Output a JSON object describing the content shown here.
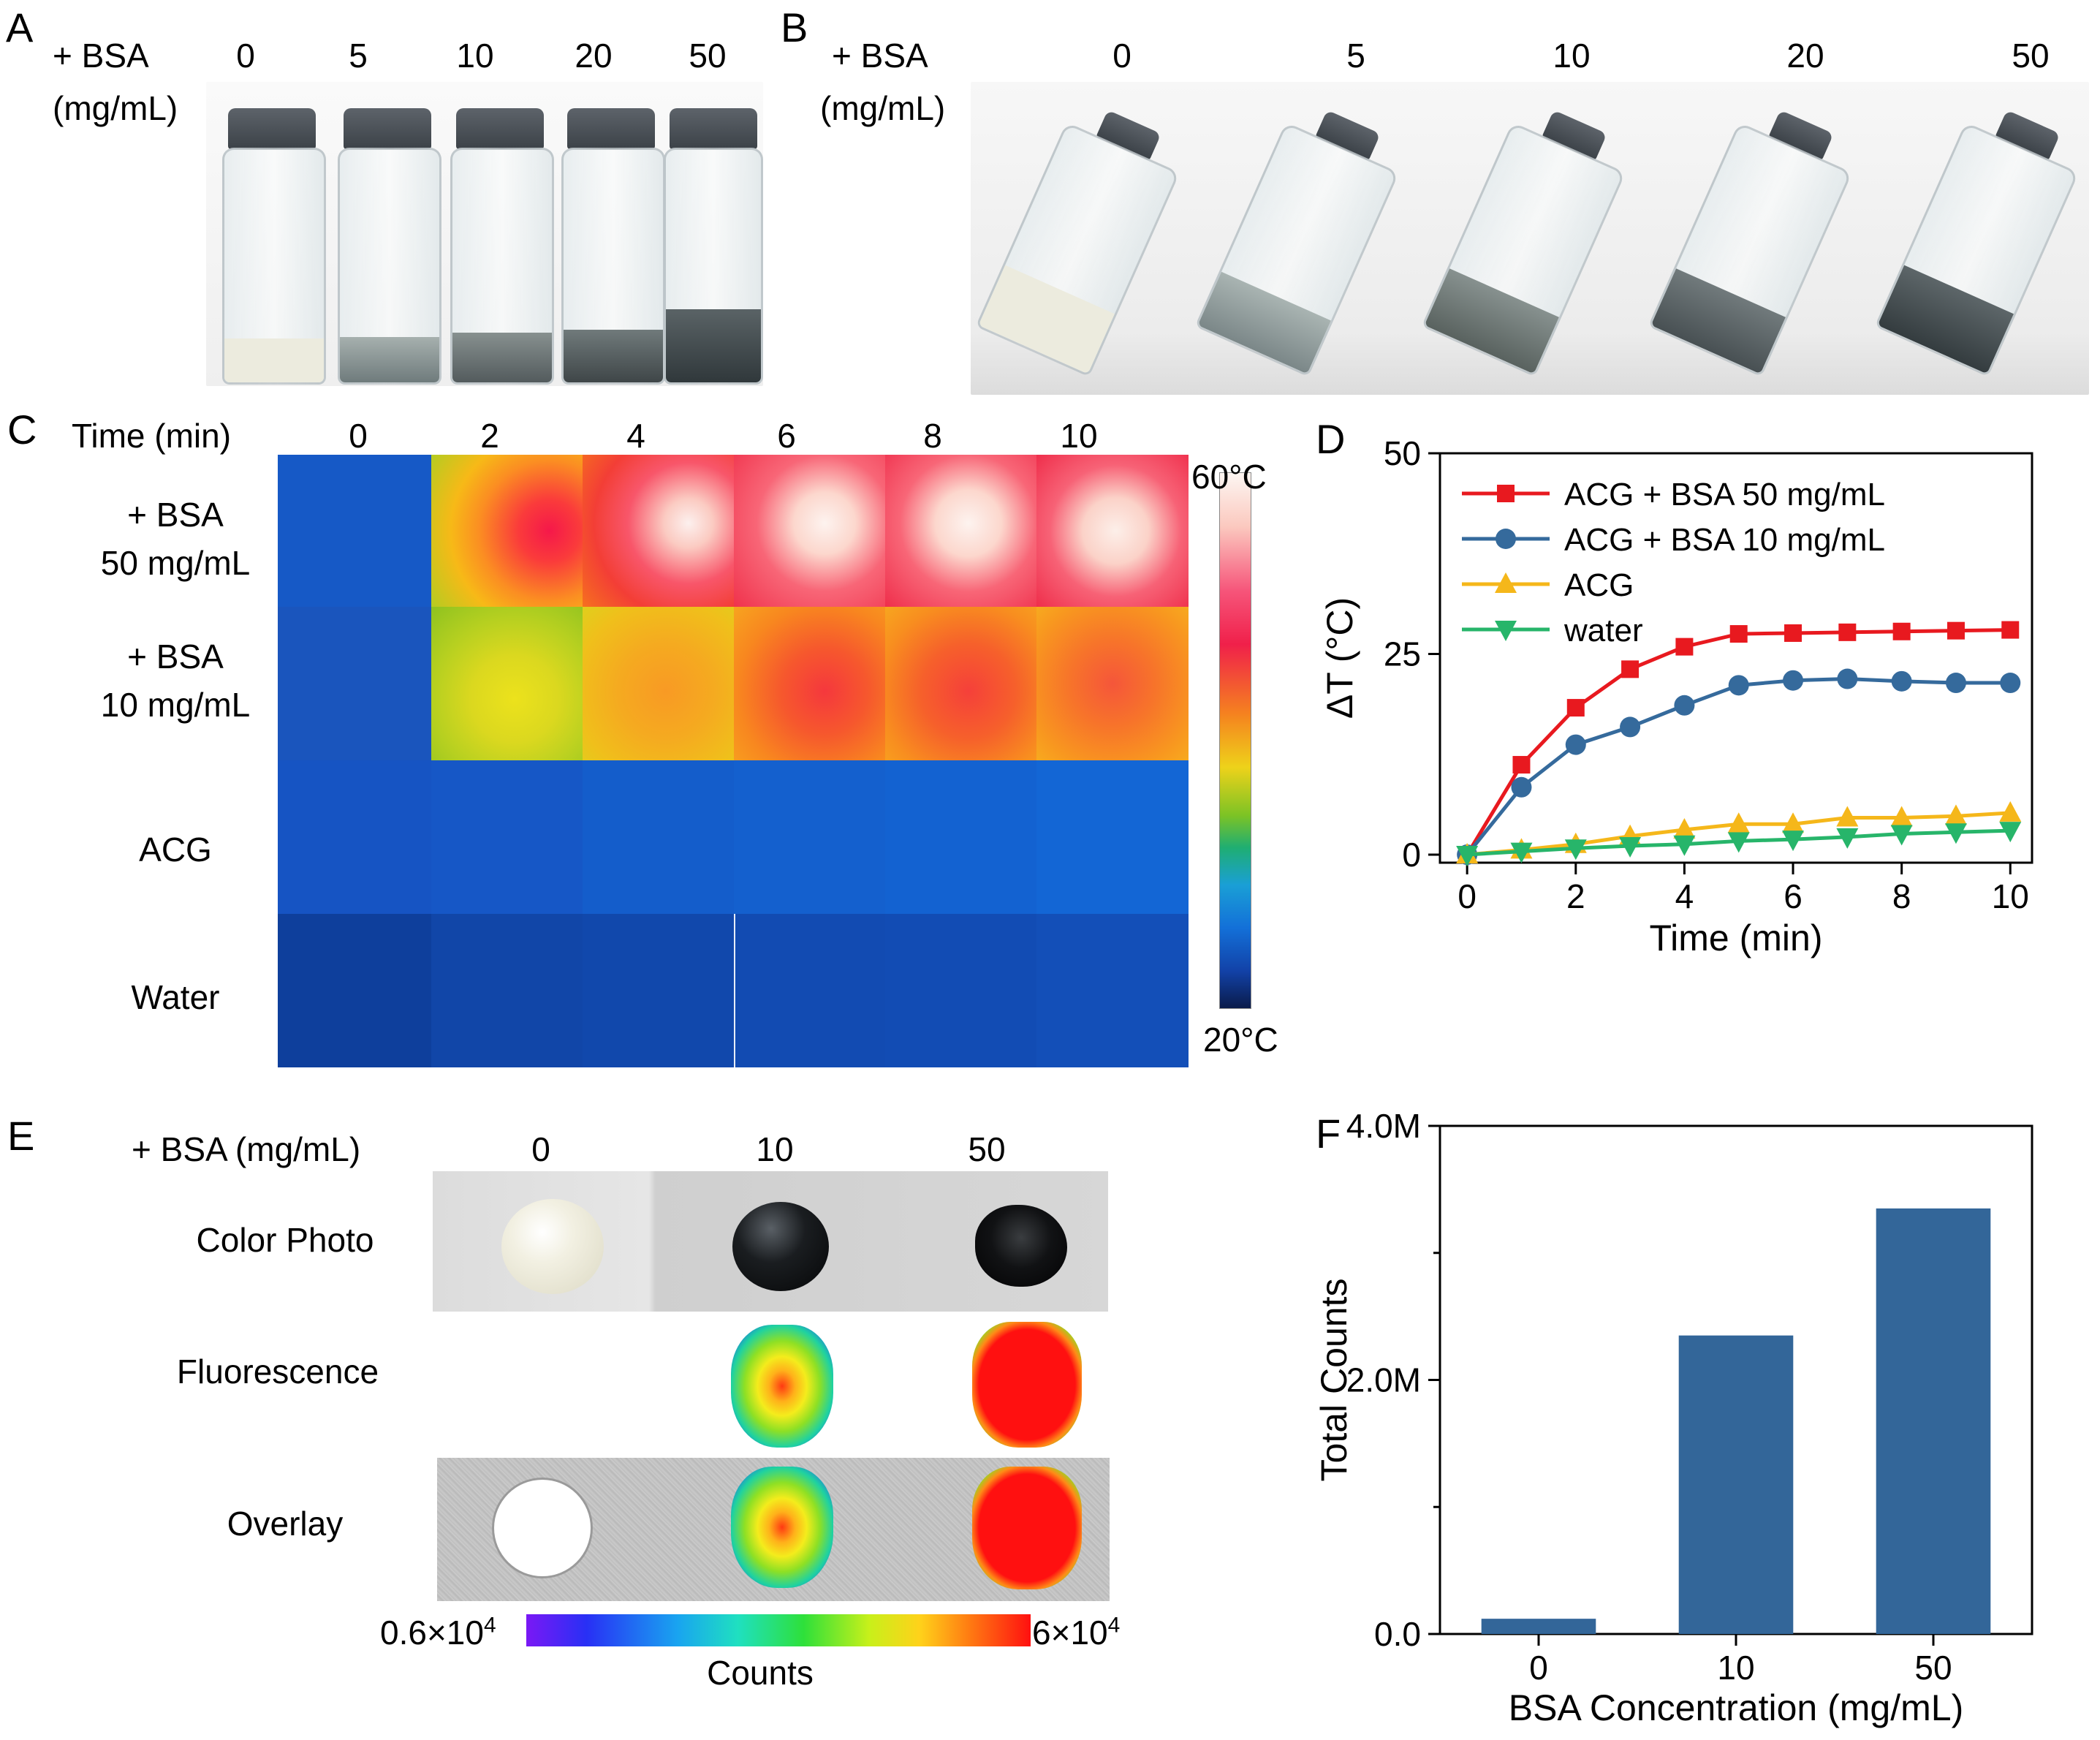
{
  "panelA": {
    "letter": "A",
    "row_label_line1": "+ BSA",
    "row_label_line2": "(mg/mL)",
    "concentrations": [
      "0",
      "5",
      "10",
      "20",
      "50"
    ]
  },
  "panelB": {
    "letter": "B",
    "row_label_line1": "+ BSA",
    "row_label_line2": "(mg/mL)",
    "concentrations": [
      "0",
      "5",
      "10",
      "20",
      "50"
    ]
  },
  "panelC": {
    "letter": "C",
    "time_header": "Time (min)",
    "times": [
      "0",
      "2",
      "4",
      "6",
      "8",
      "10"
    ],
    "rows": [
      {
        "label1": "+ BSA",
        "label2": "50 mg/mL"
      },
      {
        "label1": "+ BSA",
        "label2": "10 mg/mL"
      },
      {
        "label1": "ACG",
        "label2": ""
      },
      {
        "label1": "Water",
        "label2": ""
      }
    ],
    "colorbar_max": "60°C",
    "colorbar_min": "20°C"
  },
  "panelE": {
    "letter": "E",
    "header_label": "+ BSA  (mg/mL)",
    "concentrations": [
      "0",
      "10",
      "50"
    ],
    "row_labels": [
      "Color Photo",
      "Fluorescence",
      "Overlay"
    ],
    "scale_min": "0.6×10",
    "scale_min_exp": "4",
    "scale_max": "6×10",
    "scale_max_exp": "4",
    "scale_title": "Counts"
  },
  "chart_data": [
    {
      "panel": "D",
      "type": "line",
      "xlabel": "Time (min)",
      "ylabel": "ΔT (°C)",
      "xlim": [
        -0.5,
        10.4
      ],
      "ylim": [
        -1,
        50
      ],
      "xticks": [
        "0",
        "2",
        "4",
        "6",
        "8",
        "10"
      ],
      "yticks": [
        "0",
        "25",
        "50"
      ],
      "x": [
        0,
        1,
        2,
        3,
        4,
        5,
        6,
        7,
        8,
        9,
        10
      ],
      "legend_position": "top-left",
      "series": [
        {
          "name": "ACG + BSA 50 mg/mL",
          "color": "#e8191f",
          "marker": "square",
          "values": [
            0,
            11.2,
            18.3,
            23.1,
            25.9,
            27.5,
            27.6,
            27.7,
            27.8,
            27.9,
            28.0
          ]
        },
        {
          "name": "ACG + BSA 10 mg/mL",
          "color": "#356a9c",
          "marker": "circle",
          "values": [
            0,
            8.4,
            13.7,
            15.9,
            18.6,
            21.1,
            21.7,
            21.9,
            21.6,
            21.4,
            21.4
          ]
        },
        {
          "name": "ACG",
          "color": "#f5b71a",
          "marker": "triangle-up",
          "values": [
            0,
            0.6,
            1.3,
            2.3,
            3.1,
            3.8,
            3.8,
            4.6,
            4.6,
            4.8,
            5.2
          ]
        },
        {
          "name": "water",
          "color": "#27b56a",
          "marker": "triangle-down",
          "values": [
            0,
            0.4,
            0.8,
            1.1,
            1.3,
            1.7,
            1.9,
            2.2,
            2.6,
            2.8,
            3.0
          ]
        }
      ]
    },
    {
      "panel": "F",
      "type": "bar",
      "xlabel": "BSA Concentration (mg/mL)",
      "ylabel": "Total Counts",
      "categories": [
        "0",
        "10",
        "50"
      ],
      "values": [
        0.12,
        2.35,
        3.35
      ],
      "value_unit": "M",
      "ylim": [
        0,
        4.0
      ],
      "yticks": [
        "0.0",
        "2.0M",
        "4.0M"
      ],
      "bar_color": "#336699"
    }
  ]
}
